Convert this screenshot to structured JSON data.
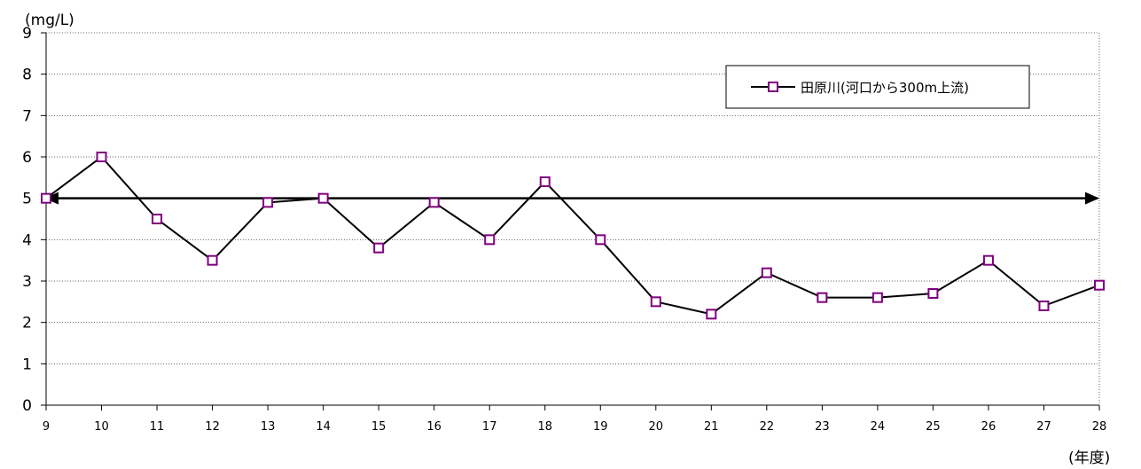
{
  "chart_data": {
    "type": "line",
    "title": "",
    "ylabel": "(mg/L)",
    "xlabel": "(年度)",
    "categories": [
      "9",
      "10",
      "11",
      "12",
      "13",
      "14",
      "15",
      "16",
      "17",
      "18",
      "19",
      "20",
      "21",
      "22",
      "23",
      "24",
      "25",
      "26",
      "27",
      "28"
    ],
    "series": [
      {
        "name": "田原川(河口から300m上流)",
        "values": [
          5.0,
          6.0,
          4.5,
          3.5,
          4.9,
          5.0,
          3.8,
          4.9,
          4.0,
          5.4,
          4.0,
          2.5,
          2.2,
          3.2,
          2.6,
          2.6,
          2.7,
          3.5,
          2.4,
          2.9
        ],
        "color": "#800080"
      }
    ],
    "reference_line": {
      "value": 5,
      "style": "double-arrow"
    },
    "ylim": [
      0,
      9
    ],
    "yticks": [
      "0",
      "1",
      "2",
      "3",
      "4",
      "5",
      "6",
      "7",
      "8",
      "9"
    ],
    "grid": "horizontal-dotted",
    "legend_position": "top-right"
  }
}
